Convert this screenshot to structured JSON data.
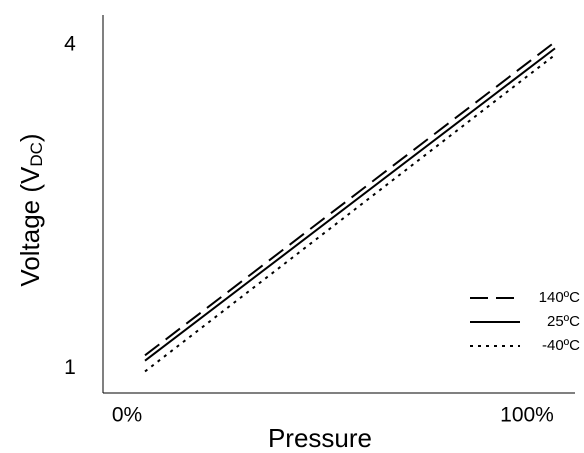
{
  "chart_data": {
    "type": "line",
    "xlabel": "Pressure",
    "ylabel": {
      "text": "Voltage (V",
      "subscript": "DC",
      "suffix": ")"
    },
    "x": [
      4.5,
      107
    ],
    "series": [
      {
        "name": "140ºC",
        "color": "#000000",
        "dash": "dashed",
        "values": [
          1.12,
          4.03
        ]
      },
      {
        "name": "25ºC",
        "color": "#000000",
        "dash": "solid",
        "values": [
          1.07,
          3.97
        ]
      },
      {
        "name": "-40ºC",
        "color": "#000000",
        "dash": "dotted",
        "values": [
          0.97,
          3.91
        ]
      }
    ],
    "xlim": [
      -6,
      112
    ],
    "xticks": [
      {
        "value": 0,
        "label": "0%"
      },
      {
        "value": 100,
        "label": "100%"
      }
    ],
    "ylim": [
      0.77,
      4.28
    ],
    "yticks": [
      1,
      4
    ],
    "legend": "lower right"
  }
}
